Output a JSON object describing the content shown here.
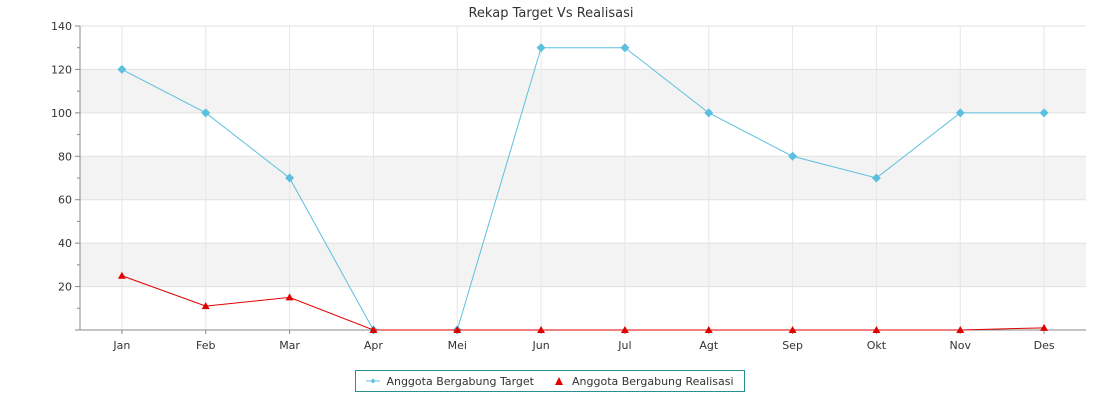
{
  "chart_data": {
    "type": "line",
    "title": "Rekap Target Vs Realisasi",
    "xlabel": "",
    "ylabel": "",
    "categories": [
      "Jan",
      "Feb",
      "Mar",
      "Apr",
      "Mei",
      "Jun",
      "Jul",
      "Agt",
      "Sep",
      "Okt",
      "Nov",
      "Des"
    ],
    "ylim": [
      0,
      140
    ],
    "yticks": [
      20,
      40,
      60,
      80,
      100,
      120,
      140
    ],
    "grid": true,
    "legend_position": "bottom-center",
    "series": [
      {
        "name": "Anggota Bergabung Target",
        "color": "#5bc0de",
        "marker": "diamond",
        "values": [
          120,
          100,
          70,
          0,
          0,
          130,
          130,
          100,
          80,
          70,
          100,
          100
        ]
      },
      {
        "name": "Anggota Bergabung Realisasi",
        "color": "#e00000",
        "marker": "triangle",
        "values": [
          25,
          11,
          15,
          0,
          0,
          0,
          0,
          0,
          0,
          0,
          0,
          1
        ]
      }
    ]
  }
}
